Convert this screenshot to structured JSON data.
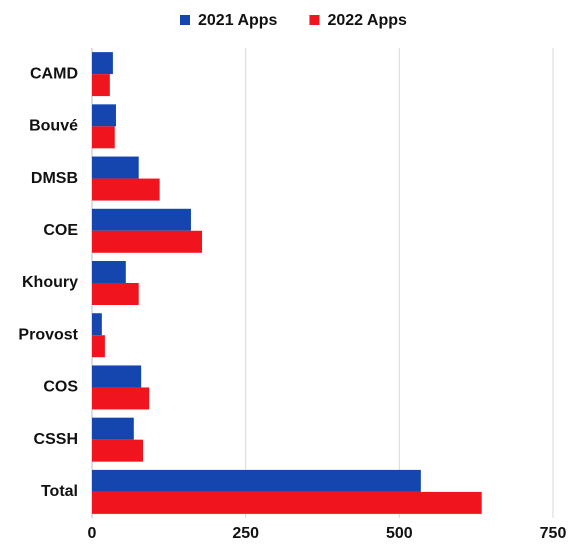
{
  "chart_data": {
    "type": "bar",
    "orientation": "horizontal",
    "categories": [
      "CAMD",
      "Bouvé",
      "DMSB",
      "COE",
      "Khoury",
      "Provost",
      "COS",
      "CSSH",
      "Total"
    ],
    "series": [
      {
        "name": "2021 Apps",
        "color": "#1546b0",
        "values": [
          34,
          39,
          76,
          161,
          55,
          16,
          80,
          68,
          535
        ]
      },
      {
        "name": "2022 Apps",
        "color": "#f0141e",
        "values": [
          29,
          37,
          110,
          179,
          76,
          21,
          93,
          83,
          634
        ]
      }
    ],
    "xlim": [
      0,
      750
    ],
    "xticks": [
      0,
      250,
      500,
      750
    ],
    "grid": true,
    "legend": "top"
  }
}
